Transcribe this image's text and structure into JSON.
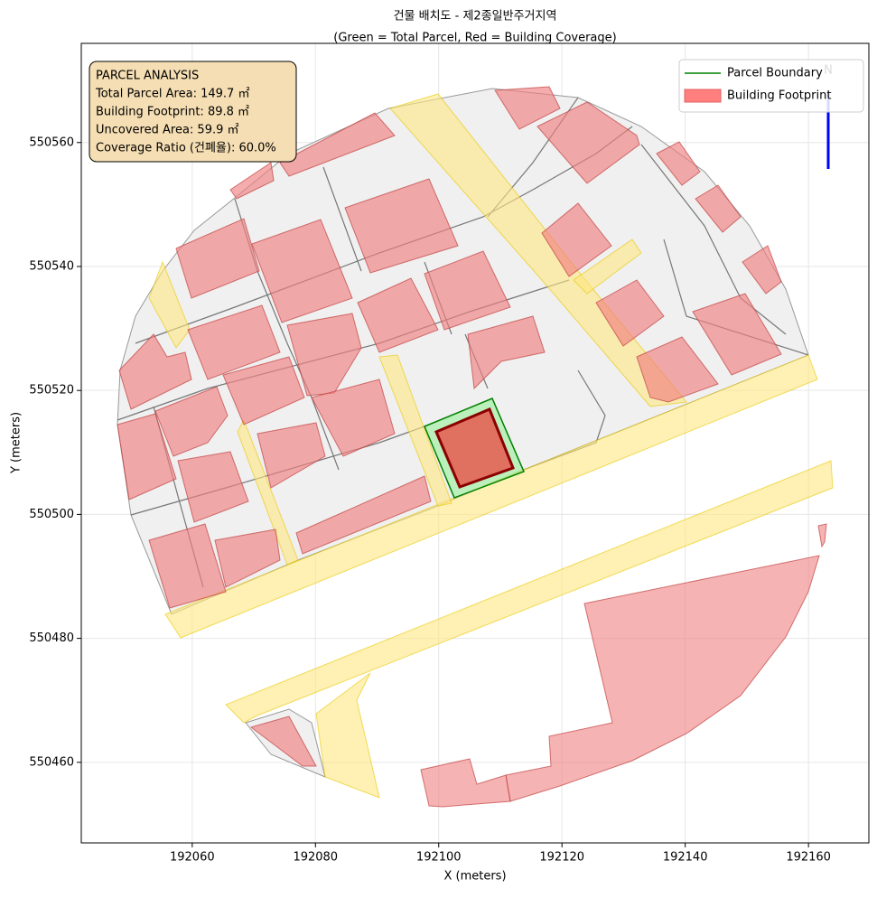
{
  "chart_data": {
    "type": "map",
    "title": "건물 배치도 - 제2종일반주거지역",
    "subtitle": "(Green = Total Parcel, Red = Building Coverage)",
    "xlabel": "X (meters)",
    "ylabel": "Y (meters)",
    "xlim": [
      192042,
      192169.8
    ],
    "ylim": [
      550447,
      550576
    ],
    "xticks": [
      192060,
      192080,
      192100,
      192120,
      192140,
      192160
    ],
    "yticks": [
      550460,
      550480,
      550500,
      550520,
      550540,
      550560
    ],
    "grid": true,
    "annotation": [
      "PARCEL ANALYSIS",
      "Total Parcel Area: 149.7 ㎡",
      "Building Footprint: 89.8 ㎡",
      "Uncovered Area: 59.9 ㎡",
      "Coverage Ratio (건폐율): 60.0%"
    ],
    "legend": {
      "position": "upper right",
      "entries": [
        {
          "name": "Parcel Boundary",
          "color": "#008000",
          "kind": "line"
        },
        {
          "name": "Building Footprint",
          "color": "#ff7f7f",
          "kind": "patch"
        }
      ]
    },
    "north_label": "N"
  }
}
